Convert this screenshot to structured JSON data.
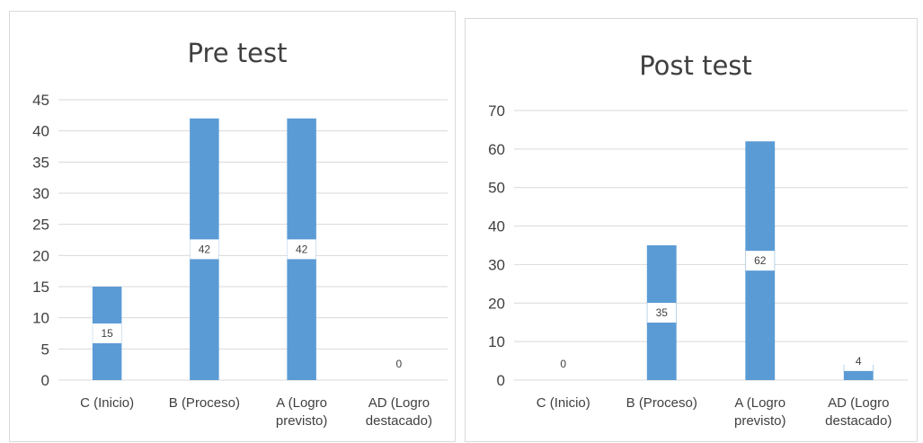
{
  "chart_data": [
    {
      "type": "bar",
      "title": "Pre test",
      "categories": [
        [
          "C (Inicio)"
        ],
        [
          "B (Proceso)"
        ],
        [
          "A (Logro",
          "previsto)"
        ],
        [
          "AD (Logro",
          "destacado)"
        ]
      ],
      "values": [
        15,
        42,
        42,
        0
      ],
      "yticks": [
        0,
        5,
        10,
        15,
        20,
        25,
        30,
        35,
        40,
        45
      ],
      "ylim": [
        0,
        45
      ],
      "grid": true,
      "bar_color": "#5b9bd5"
    },
    {
      "type": "bar",
      "title": "Post test",
      "categories": [
        [
          "C (Inicio)"
        ],
        [
          "B (Proceso)"
        ],
        [
          "A (Logro",
          "previsto)"
        ],
        [
          "AD (Logro",
          "destacado)"
        ]
      ],
      "values": [
        0,
        35,
        62,
        4
      ],
      "yticks": [
        0,
        10,
        20,
        30,
        40,
        50,
        60,
        70
      ],
      "ylim": [
        0,
        70
      ],
      "grid": true,
      "bar_color": "#5b9bd5"
    }
  ]
}
